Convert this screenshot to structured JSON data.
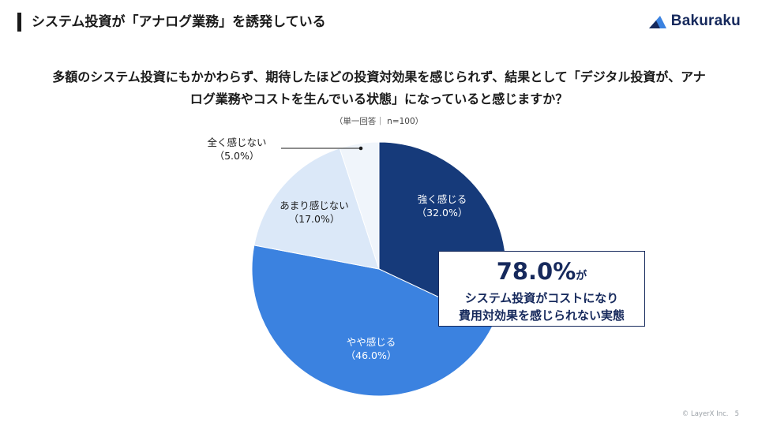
{
  "header": {
    "title": "システム投資が「アナログ業務」を誘発している",
    "logo_text": "Bakuraku"
  },
  "question": "多額のシステム投資にもかかわらず、期待したほどの投資対効果を感じられず、結果として「デジタル投資が、アナログ業務やコストを生んでいる状態」になっていると感じますか？",
  "note": "（単一回答｜ n=100）",
  "callout": {
    "big": "78.0%",
    "suffix": "が",
    "line1": "システム投資がコストになり",
    "line2": "費用対効果を感じられない実態"
  },
  "footer": {
    "copyright": "© LayerX Inc.",
    "page": "5"
  },
  "colors": {
    "strong": "#163a7a",
    "somewhat": "#3b82e0",
    "not_much": "#dbe8f8",
    "not_at_all": "#f0f5fb",
    "navy": "#16295c"
  },
  "chart_data": {
    "type": "pie",
    "title": "",
    "start": "12 o'clock",
    "direction": "clockwise",
    "slices": [
      {
        "label": "強く感じる",
        "value": 32.0,
        "value_label": "（32.0%）",
        "color": "#163a7a"
      },
      {
        "label": "やや感じる",
        "value": 46.0,
        "value_label": "（46.0%）",
        "color": "#3b82e0"
      },
      {
        "label": "あまり感じない",
        "value": 17.0,
        "value_label": "（17.0%）",
        "color": "#dbe8f8"
      },
      {
        "label": "全く感じない",
        "value": 5.0,
        "value_label": "（5.0%）",
        "color": "#f0f5fb"
      }
    ]
  }
}
